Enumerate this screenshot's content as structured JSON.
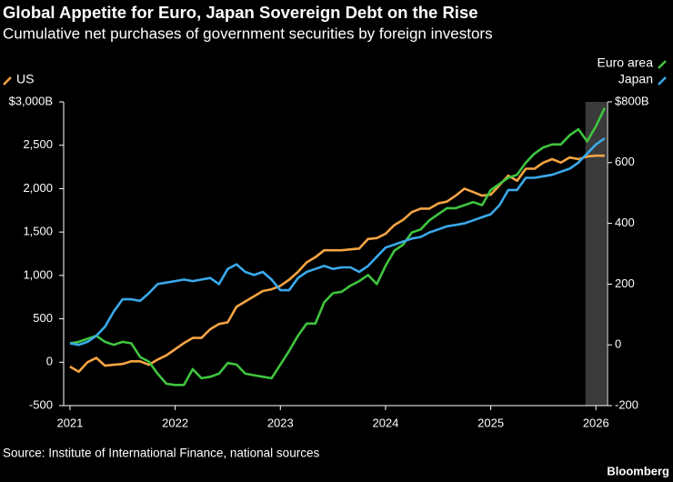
{
  "chart_data": {
    "type": "line",
    "title": "Global Appetite for Euro, Japan Sovereign Debt on the Rise",
    "subtitle": "Cumulative net purchases of government securities by foreign investors",
    "source": "Source: Institute of International Finance, national sources",
    "credit": "Bloomberg",
    "x": [
      2021,
      2021.0833,
      2021.1667,
      2021.25,
      2021.3333,
      2021.4167,
      2021.5,
      2021.5833,
      2021.6667,
      2021.75,
      2021.8333,
      2021.9167,
      2022,
      2022.0833,
      2022.1667,
      2022.25,
      2022.3333,
      2022.4167,
      2022.5,
      2022.5833,
      2022.6667,
      2022.75,
      2022.8333,
      2022.9167,
      2023,
      2023.0833,
      2023.1667,
      2023.25,
      2023.3333,
      2023.4167,
      2023.5,
      2023.5833,
      2023.6667,
      2023.75,
      2023.8333,
      2023.9167,
      2024,
      2024.0833,
      2024.1667,
      2024.25,
      2024.3333,
      2024.4167,
      2024.5,
      2024.5833,
      2024.6667,
      2024.75,
      2024.8333,
      2024.9167,
      2025,
      2025.0833,
      2025.1667,
      2025.25,
      2025.3333,
      2025.4167,
      2025.5,
      2025.5833,
      2025.6667,
      2025.75,
      2025.8333,
      2025.9167,
      2026,
      2026.0833
    ],
    "series": [
      {
        "name": "US",
        "color": "#f5a443",
        "axis": "y",
        "values": [
          -50,
          -110,
          0,
          50,
          -40,
          -30,
          -20,
          10,
          10,
          -30,
          30,
          80,
          150,
          220,
          280,
          280,
          380,
          440,
          460,
          640,
          700,
          760,
          820,
          840,
          880,
          950,
          1040,
          1150,
          1210,
          1290,
          1290,
          1290,
          1300,
          1310,
          1420,
          1430,
          1480,
          1580,
          1640,
          1730,
          1770,
          1770,
          1830,
          1850,
          1920,
          2000,
          1960,
          1920,
          1930,
          2040,
          2150,
          2090,
          2230,
          2230,
          2300,
          2340,
          2300,
          2360,
          2340,
          2370,
          2380,
          2380
        ]
      },
      {
        "name": "Euro area",
        "color": "#3fc43f",
        "axis": "y2",
        "values": [
          5,
          10,
          20,
          30,
          10,
          0,
          10,
          5,
          -40,
          -55,
          -95,
          -128,
          -132,
          -132,
          -80,
          -110,
          -105,
          -95,
          -60,
          -65,
          -95,
          -100,
          -105,
          -110,
          -65,
          -20,
          30,
          70,
          70,
          140,
          170,
          175,
          195,
          210,
          230,
          200,
          260,
          310,
          330,
          370,
          380,
          410,
          430,
          450,
          450,
          460,
          470,
          460,
          510,
          530,
          550,
          560,
          600,
          630,
          650,
          660,
          660,
          690,
          710,
          670,
          720,
          780
        ]
      },
      {
        "name": "Japan",
        "color": "#3aa9ea",
        "axis": "y2",
        "values": [
          5,
          0,
          10,
          30,
          60,
          110,
          150,
          150,
          145,
          170,
          200,
          205,
          210,
          215,
          210,
          215,
          220,
          200,
          250,
          265,
          240,
          230,
          240,
          215,
          180,
          180,
          220,
          240,
          250,
          260,
          250,
          255,
          255,
          240,
          260,
          290,
          320,
          330,
          340,
          350,
          355,
          370,
          380,
          390,
          395,
          400,
          410,
          420,
          430,
          460,
          510,
          510,
          550,
          550,
          555,
          560,
          570,
          580,
          600,
          630,
          660,
          680
        ]
      }
    ],
    "shaded_range": [
      2025.9,
      2026.1
    ],
    "xlim": [
      2020.94,
      2026.11
    ],
    "xticks": [
      2021,
      2022,
      2023,
      2024,
      2025,
      2026
    ],
    "ylim": [
      -500,
      3000
    ],
    "yticks": [
      {
        "value": 3000,
        "label": "$3,000B"
      },
      {
        "value": 2500,
        "label": "2,500"
      },
      {
        "value": 2000,
        "label": "2,000"
      },
      {
        "value": 1500,
        "label": "1,500"
      },
      {
        "value": 1000,
        "label": "1,000"
      },
      500,
      0,
      -500
    ],
    "y2lim": [
      -200,
      800
    ],
    "y2ticks": [
      {
        "value": 800,
        "label": "$800B"
      },
      600,
      400,
      200,
      0,
      -200
    ],
    "grid": false
  }
}
